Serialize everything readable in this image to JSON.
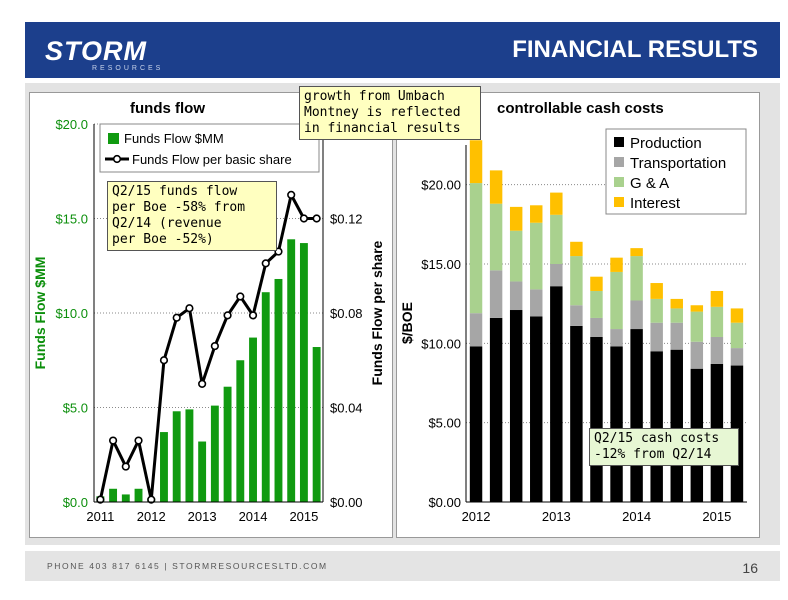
{
  "header": {
    "logo_text": "STORM",
    "logo_sub": "RESOURCES",
    "title": "FINANCIAL RESULTS"
  },
  "footer": {
    "text": "PHONE 403 817 6145  |  STORMRESOURCESLTD.COM",
    "page_number": "16"
  },
  "callouts": {
    "top": [
      "growth from Umbach",
      "Montney is reflected",
      "in financial results"
    ],
    "left": [
      "Q2/15 funds flow",
      "per Boe -58% from",
      "Q2/14 (revenue",
      "per Boe -52%)"
    ],
    "right": [
      "Q2/15 cash costs",
      "-12% from Q2/14"
    ]
  },
  "colors": {
    "brand_blue": "#1c3f8c",
    "funds_green": "#109a10",
    "production": "#000000",
    "transportation": "#a6a6a6",
    "g_and_a": "#a9d18e",
    "interest": "#ffc000",
    "axis_green": "#0c8f0c"
  },
  "chart_data": [
    {
      "type": "bar",
      "title": "funds flow",
      "ylabel": "Funds Flow $MM",
      "y2label": "Funds Flow per share",
      "ylim": [
        0,
        20
      ],
      "y2lim": [
        0,
        0.16
      ],
      "yticks": [
        "$0.0",
        "$5.0",
        "$10.0",
        "$15.0",
        "$20.0"
      ],
      "y2ticks": [
        "$0.00",
        "$0.04",
        "$0.08",
        "$0.12"
      ],
      "year_labels": [
        "2011",
        "2012",
        "2013",
        "2014",
        "2015"
      ],
      "grid": true,
      "legend": "top",
      "series": [
        {
          "name": "Funds Flow $MM",
          "kind": "bar",
          "values": [
            0.3,
            0.7,
            0.4,
            0.7,
            0.2,
            3.7,
            4.8,
            4.9,
            3.2,
            5.1,
            6.1,
            7.5,
            8.7,
            11.1,
            11.8,
            13.9,
            13.7,
            8.2
          ]
        },
        {
          "name": "Funds Flow per basic share",
          "kind": "line",
          "values": [
            0.001,
            0.026,
            0.015,
            0.026,
            0.001,
            0.06,
            0.078,
            0.082,
            0.05,
            0.066,
            0.079,
            0.087,
            0.079,
            0.101,
            0.106,
            0.13,
            0.12,
            0.12
          ]
        }
      ]
    },
    {
      "type": "bar",
      "title": "controllable cash costs",
      "ylabel": "$/BOE",
      "ylim": [
        0,
        22.5
      ],
      "yticks": [
        "$0.00",
        "$5.00",
        "$10.00",
        "$15.00",
        "$20.00"
      ],
      "year_labels": [
        "2012",
        "2013",
        "2014",
        "2015"
      ],
      "grid": true,
      "stacked": true,
      "legend": "top-right",
      "series": [
        {
          "name": "Production",
          "values": [
            9.8,
            11.6,
            12.1,
            11.7,
            13.6,
            11.1,
            10.4,
            9.8,
            10.9,
            9.5,
            9.6,
            8.4,
            8.7,
            8.6
          ]
        },
        {
          "name": "Transportation",
          "values": [
            2.1,
            3.0,
            1.8,
            1.7,
            1.4,
            1.3,
            1.2,
            1.1,
            1.8,
            1.8,
            1.7,
            1.7,
            1.7,
            1.1
          ]
        },
        {
          "name": "G & A",
          "values": [
            8.2,
            4.2,
            3.2,
            4.2,
            3.1,
            3.1,
            1.7,
            3.6,
            2.8,
            1.5,
            0.9,
            1.9,
            1.9,
            1.6
          ]
        },
        {
          "name": "Interest",
          "values": [
            2.7,
            2.1,
            1.5,
            1.1,
            1.4,
            0.9,
            0.9,
            0.9,
            0.5,
            1.0,
            0.6,
            0.4,
            1.0,
            0.9
          ]
        }
      ]
    }
  ]
}
